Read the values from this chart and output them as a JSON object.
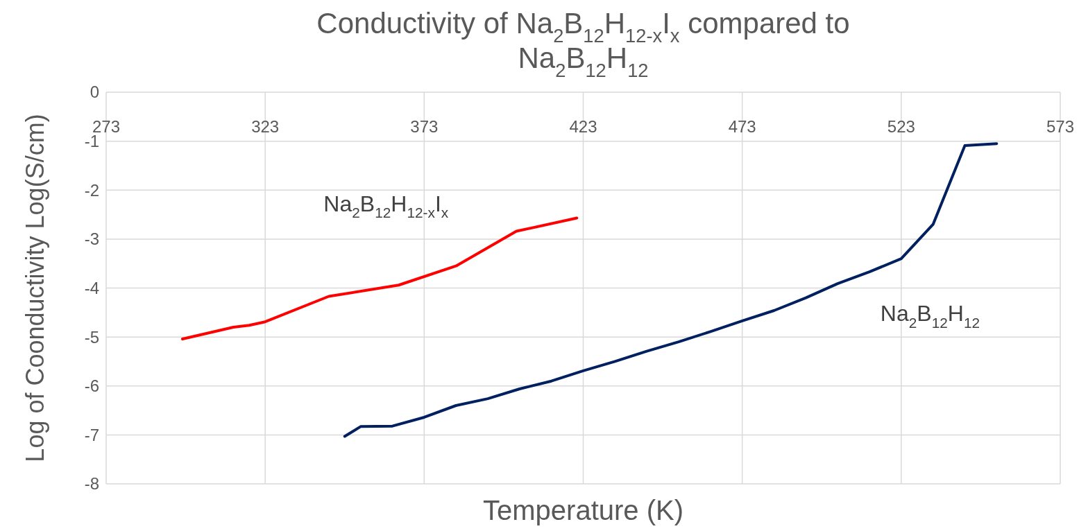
{
  "chart_data": {
    "type": "line",
    "title": "Conductivity of Na$_{2}$B$_{12}$H$_{12-x}$I$_{x}$ compared to Na$_{2}$B$_{12}$H$_{12}$",
    "xlabel": "Temperature (K)",
    "ylabel": "Log of Coonductivity  Log(S/cm)",
    "xlim": [
      273,
      573
    ],
    "xticks": [
      273,
      323,
      373,
      423,
      473,
      523,
      573
    ],
    "ylim": [
      -8,
      0
    ],
    "yticks": [
      -8,
      -7,
      -6,
      -5,
      -4,
      -3,
      -2,
      -1,
      0
    ],
    "grid": true,
    "series": [
      {
        "name": "Na$_{2}$B$_{12}$H$_{12-x}$I$_{x}$",
        "color": "#ff0000",
        "x": [
          297,
          313,
          318,
          323,
          343,
          365,
          383,
          402,
          421
        ],
        "values": [
          -5.04,
          -4.8,
          -4.76,
          -4.69,
          -4.17,
          -3.94,
          -3.55,
          -2.84,
          -2.57
        ]
      },
      {
        "name": "Na$_{2}$B$_{12}$H$_{12}$",
        "color": "#002060",
        "x": [
          348,
          353,
          363,
          373,
          383,
          393,
          403,
          413,
          423,
          433,
          443,
          453,
          463,
          473,
          483,
          493,
          503,
          513,
          523,
          533,
          543,
          553
        ],
        "values": [
          -7.03,
          -6.83,
          -6.82,
          -6.64,
          -6.4,
          -6.26,
          -6.06,
          -5.9,
          -5.69,
          -5.5,
          -5.29,
          -5.1,
          -4.89,
          -4.67,
          -4.46,
          -4.2,
          -3.91,
          -3.67,
          -3.4,
          -2.7,
          -1.09,
          -1.05
        ]
      }
    ]
  }
}
